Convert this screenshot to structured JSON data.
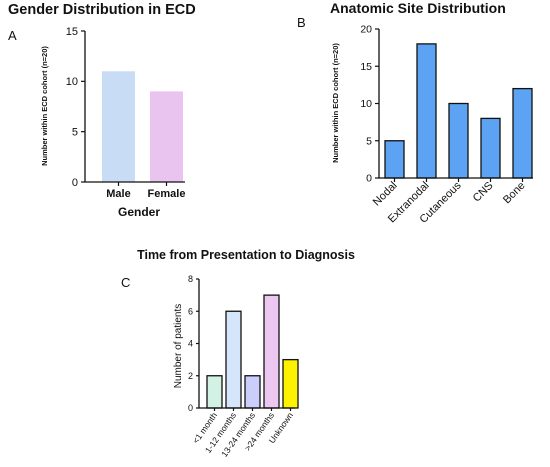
{
  "panels": {
    "a": "A",
    "b": "B",
    "c": "C"
  },
  "chart_data": [
    {
      "type": "bar",
      "title": "Gender Distribution in ECD",
      "xlabel": "Gender",
      "ylabel": "Number within ECD cohort (n=20)",
      "categories": [
        "Male",
        "Female"
      ],
      "values": [
        11,
        9
      ],
      "colors": [
        "#c9dcf6",
        "#e8c4ee"
      ],
      "ylim": [
        0,
        15
      ],
      "yticks": [
        0,
        5,
        10,
        15
      ],
      "outlined": false,
      "legend": false,
      "grid": false
    },
    {
      "type": "bar",
      "title": "Anatomic Site Distribution",
      "xlabel": "",
      "ylabel": "Number within ECD cohort (n=20)",
      "categories": [
        "Nodal",
        "Extranodal",
        "Cutaneous",
        "CNS",
        "Bone"
      ],
      "values": [
        5,
        18,
        10,
        8,
        12
      ],
      "colors": [
        "#5da3f4",
        "#5da3f4",
        "#5da3f4",
        "#5da3f4",
        "#5da3f4"
      ],
      "ylim": [
        0,
        20
      ],
      "yticks": [
        0,
        5,
        10,
        15,
        20
      ],
      "outlined": true,
      "legend": false,
      "grid": false
    },
    {
      "type": "bar",
      "title": "Time from Presentation to Diagnosis",
      "xlabel": "",
      "ylabel": "Number of patients",
      "categories": [
        "<1 month",
        "1-12 months",
        "13-24 months",
        ">24 months",
        "Unknown"
      ],
      "values": [
        2,
        6,
        2,
        7,
        3
      ],
      "colors": [
        "#d2f3e3",
        "#d6e6fa",
        "#cbcdfa",
        "#ecc7f0",
        "#fdf200"
      ],
      "ylim": [
        0,
        8
      ],
      "yticks": [
        0,
        2,
        4,
        6,
        8
      ],
      "outlined": true,
      "legend": false,
      "grid": false
    }
  ]
}
